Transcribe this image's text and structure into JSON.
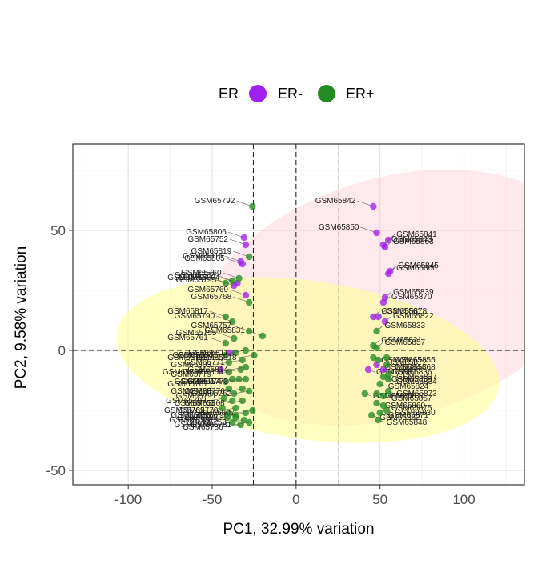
{
  "chart_data": {
    "type": "scatter",
    "title": "",
    "xlabel": "PC1, 32.99% variation",
    "ylabel": "PC2, 9.58% variation",
    "xlim": [
      -133,
      136
    ],
    "ylim": [
      -56,
      86
    ],
    "xticks": [
      -100,
      -50,
      0,
      50,
      100
    ],
    "yticks": [
      -50,
      0,
      50
    ],
    "xtick_labels": [
      "-100",
      "-50",
      "0",
      "50",
      "100"
    ],
    "ytick_labels": [
      "-50",
      "0",
      "50"
    ],
    "grid": true,
    "vlines": [
      -25.5,
      0,
      25.5
    ],
    "hlines": [
      0
    ],
    "legend": {
      "title": "ER",
      "position": "top",
      "entries": [
        "ER-",
        "ER+"
      ]
    },
    "series": [
      {
        "name": "ER-",
        "color": "#a020f0",
        "ellipse_fill": "#ffc0cb",
        "points": [
          {
            "label": "GSM65842",
            "x": 46,
            "y": 60
          },
          {
            "label": "GSM65841",
            "x": 55,
            "y": 46
          },
          {
            "label": "GSM65850",
            "x": 48,
            "y": 49
          },
          {
            "label": "GSM65863",
            "x": 53,
            "y": 43
          },
          {
            "label": "GSM65843",
            "x": 52,
            "y": 44
          },
          {
            "label": "GSM65845",
            "x": 56,
            "y": 33
          },
          {
            "label": "GSM65866",
            "x": 55,
            "y": 32
          },
          {
            "label": "GSM65839",
            "x": 53,
            "y": 22
          },
          {
            "label": "GSM65870",
            "x": 52,
            "y": 20
          },
          {
            "label": "GSM65861",
            "x": 46,
            "y": 14
          },
          {
            "label": "GSM65878",
            "x": 49,
            "y": 14
          },
          {
            "label": "GSM65822",
            "x": 53,
            "y": 12
          },
          {
            "label": "GSM65806",
            "x": -31,
            "y": 47
          },
          {
            "label": "GSM65752",
            "x": -30,
            "y": 44
          },
          {
            "label": "GSM65816",
            "x": -33,
            "y": 37
          },
          {
            "label": "GSM65805",
            "x": -32,
            "y": 36
          },
          {
            "label": "GSM65804",
            "x": -35,
            "y": 28
          },
          {
            "label": "GSM65769",
            "x": -30,
            "y": 23
          },
          {
            "label": "GSM65795",
            "x": -37,
            "y": 27
          },
          {
            "label": "GSM65784",
            "x": -39,
            "y": -1
          },
          {
            "label": "GSM65797",
            "x": -45,
            "y": -8
          },
          {
            "label": "GSM65844",
            "x": 48,
            "y": -6
          },
          {
            "label": "GSM65881",
            "x": 43,
            "y": -8
          },
          {
            "label": "GSM65836",
            "x": 52,
            "y": -8
          }
        ]
      },
      {
        "name": "ER+",
        "color": "#228b22",
        "ellipse_fill": "#ffff99",
        "points": [
          {
            "label": "GSM65792",
            "x": -26,
            "y": 60
          },
          {
            "label": "GSM65819",
            "x": -28,
            "y": 39
          },
          {
            "label": "GSM65760",
            "x": -34,
            "y": 30
          },
          {
            "label": "GSM65794",
            "x": -42,
            "y": 28
          },
          {
            "label": "GSM65772",
            "x": -38,
            "y": 29
          },
          {
            "label": "GSM65768",
            "x": -28,
            "y": 20
          },
          {
            "label": "GSM65817",
            "x": -42,
            "y": 14
          },
          {
            "label": "GSM65790",
            "x": -38,
            "y": 12
          },
          {
            "label": "GSM65761",
            "x": -42,
            "y": 3
          },
          {
            "label": "GSM65755",
            "x": -37,
            "y": 5
          },
          {
            "label": "GSM65757",
            "x": -28,
            "y": 8
          },
          {
            "label": "GSM65831",
            "x": -20,
            "y": 6
          },
          {
            "label": "GSM65833",
            "x": 48,
            "y": 8
          },
          {
            "label": "GSM65758",
            "x": -42,
            "y": -2
          },
          {
            "label": "GSM65775",
            "x": -36,
            "y": -1
          },
          {
            "label": "GSM65811",
            "x": -30,
            "y": 0
          },
          {
            "label": "GSM65818",
            "x": -25,
            "y": -2
          },
          {
            "label": "GSM65821",
            "x": 46,
            "y": 2
          },
          {
            "label": "GSM65857",
            "x": 48,
            "y": 1
          },
          {
            "label": "GSM65803",
            "x": -40,
            "y": -5
          },
          {
            "label": "GSM65771",
            "x": -32,
            "y": -4
          },
          {
            "label": "GSM65865",
            "x": 46,
            "y": -3
          },
          {
            "label": "GSM65872",
            "x": 49,
            "y": -4
          },
          {
            "label": "GSM65855",
            "x": 54,
            "y": -3
          },
          {
            "label": "GSM65779",
            "x": -40,
            "y": -9
          },
          {
            "label": "GSM65800",
            "x": -33,
            "y": -8
          },
          {
            "label": "GSM65814",
            "x": -30,
            "y": -7
          },
          {
            "label": "GSM65868",
            "x": 54,
            "y": -6
          },
          {
            "label": "GSM65767",
            "x": -42,
            "y": -13
          },
          {
            "label": "GSM65801",
            "x": -38,
            "y": -12
          },
          {
            "label": "GSM65774",
            "x": -34,
            "y": -12
          },
          {
            "label": "GSM65773",
            "x": -30,
            "y": -12
          },
          {
            "label": "GSM65869",
            "x": 52,
            "y": -11
          },
          {
            "label": "GSM65837",
            "x": 55,
            "y": -10
          },
          {
            "label": "GSM65783",
            "x": -40,
            "y": -16
          },
          {
            "label": "GSM65791",
            "x": -37,
            "y": -18
          },
          {
            "label": "GSM65776",
            "x": -32,
            "y": -16
          },
          {
            "label": "GSM65762",
            "x": -28,
            "y": -17
          },
          {
            "label": "GSM65824",
            "x": 50,
            "y": -14
          },
          {
            "label": "GSM65834",
            "x": 55,
            "y": -12
          },
          {
            "label": "GSM65793",
            "x": -43,
            "y": -20
          },
          {
            "label": "GSM65763",
            "x": -38,
            "y": -21
          },
          {
            "label": "GSM65770",
            "x": -36,
            "y": -24
          },
          {
            "label": "GSM65808",
            "x": -32,
            "y": -21
          },
          {
            "label": "GSM65853",
            "x": 41,
            "y": -18
          },
          {
            "label": "GSM65874",
            "x": 48,
            "y": -18
          },
          {
            "label": "GSM65867",
            "x": 52,
            "y": -19
          },
          {
            "label": "GSM65873",
            "x": 55,
            "y": -17
          },
          {
            "label": "GSM65789",
            "x": -44,
            "y": -24
          },
          {
            "label": "GSM65785",
            "x": -40,
            "y": -26
          },
          {
            "label": "GSM65788",
            "x": -36,
            "y": -27
          },
          {
            "label": "GSM65798",
            "x": -30,
            "y": -26
          },
          {
            "label": "GSM65807",
            "x": -26,
            "y": -25
          },
          {
            "label": "GSM65860",
            "x": 48,
            "y": -22
          },
          {
            "label": "GSM65875",
            "x": 52,
            "y": -23
          },
          {
            "label": "GSM65799",
            "x": -41,
            "y": -28
          },
          {
            "label": "GSM65815",
            "x": -36,
            "y": -28
          },
          {
            "label": "GSM65753",
            "x": -31,
            "y": -29
          },
          {
            "label": "GSM65862",
            "x": 45,
            "y": -27
          },
          {
            "label": "GSM65871",
            "x": 50,
            "y": -26
          },
          {
            "label": "GSM65830",
            "x": 54,
            "y": -25
          },
          {
            "label": "GSM65796",
            "x": -38,
            "y": -30
          },
          {
            "label": "GSM65786",
            "x": -33,
            "y": -31
          },
          {
            "label": "GSM65781",
            "x": -28,
            "y": -30
          },
          {
            "label": "GSM65848",
            "x": 49,
            "y": -29
          }
        ]
      }
    ]
  }
}
